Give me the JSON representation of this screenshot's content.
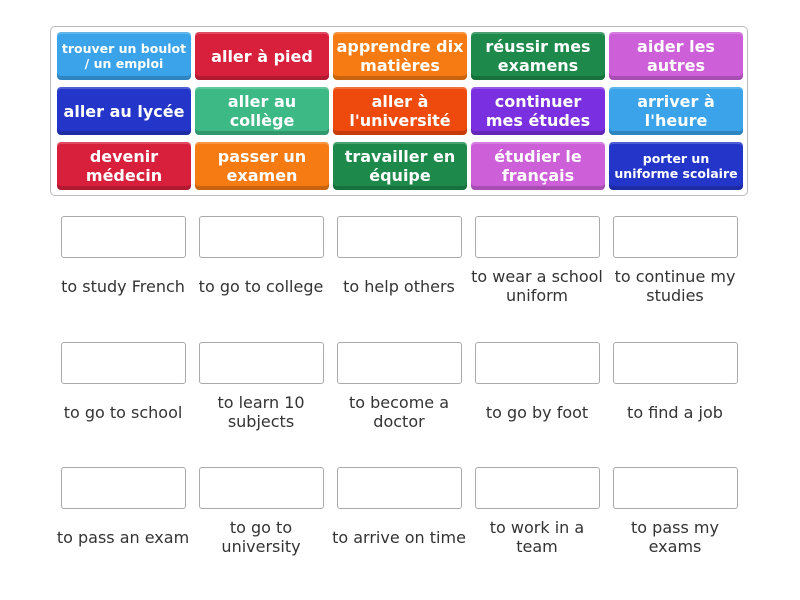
{
  "tiles": [
    {
      "text": "trouver un boulot / un emploi",
      "color": "#3aa3e9",
      "small": true
    },
    {
      "text": "aller à pied",
      "color": "#d81f3b"
    },
    {
      "text": "apprendre dix matières",
      "color": "#f67b12"
    },
    {
      "text": "réussir mes examens",
      "color": "#1d8a4b"
    },
    {
      "text": "aider les autres",
      "color": "#cd5fd9"
    },
    {
      "text": "aller au lycée",
      "color": "#2435c9"
    },
    {
      "text": "aller au collège",
      "color": "#3cb985"
    },
    {
      "text": "aller à l'université",
      "color": "#ef4a0d"
    },
    {
      "text": "continuer mes études",
      "color": "#7a2fe0"
    },
    {
      "text": "arriver à l'heure",
      "color": "#3aa3e9"
    },
    {
      "text": "devenir médecin",
      "color": "#d81f3b"
    },
    {
      "text": "passer un examen",
      "color": "#f67b12"
    },
    {
      "text": "travailler en équipe",
      "color": "#1d8a4b"
    },
    {
      "text": "étudier le français",
      "color": "#cd5fd9"
    },
    {
      "text": "porter un uniforme scolaire",
      "color": "#2435c9",
      "small": true
    }
  ],
  "targets": [
    "to study French",
    "to go to college",
    "to help others",
    "to wear a school uniform",
    "to continue my studies",
    "to go to school",
    "to learn 10 subjects",
    "to become a doctor",
    "to go by foot",
    "to find a job",
    "to pass an exam",
    "to go to university",
    "to arrive on time",
    "to work in a team",
    "to pass my exams"
  ]
}
